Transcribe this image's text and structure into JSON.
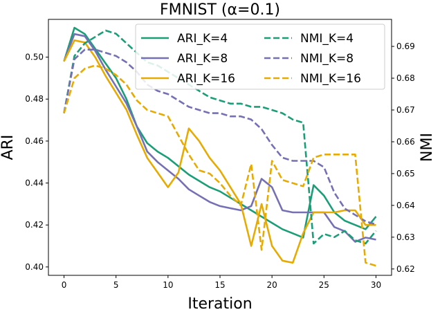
{
  "chart_data": {
    "type": "line",
    "title": "FMNIST (α=0.1)",
    "xlabel": "Iteration",
    "ylabel_left": "ARI",
    "ylabel_right": "NMI",
    "xlim": [
      -1.5,
      31.5
    ],
    "ylim_left": [
      0.396,
      0.518
    ],
    "ylim_right": [
      0.618,
      0.6985
    ],
    "x_ticks": [
      "0",
      "5",
      "10",
      "15",
      "20",
      "25",
      "30"
    ],
    "y_left_ticks": [
      "0.40",
      "0.42",
      "0.44",
      "0.46",
      "0.48",
      "0.50"
    ],
    "y_right_ticks": [
      "0.62",
      "0.63",
      "0.64",
      "0.65",
      "0.66",
      "0.67",
      "0.68",
      "0.69"
    ],
    "legend_position": "top-right",
    "legend_columns": 2,
    "x": [
      0,
      1,
      2,
      3,
      4,
      5,
      6,
      7,
      8,
      9,
      10,
      11,
      12,
      13,
      14,
      15,
      16,
      17,
      18,
      19,
      20,
      21,
      22,
      23,
      24,
      25,
      26,
      27,
      28,
      29,
      30
    ],
    "series": [
      {
        "name": "ARI_K=4",
        "axis": "left",
        "style": "solid",
        "color": "#1b9e77",
        "values": [
          0.498,
          0.514,
          0.511,
          0.504,
          0.497,
          0.49,
          0.48,
          0.467,
          0.459,
          0.455,
          0.452,
          0.448,
          0.444,
          0.441,
          0.438,
          0.436,
          0.433,
          0.43,
          0.427,
          0.424,
          0.421,
          0.418,
          0.416,
          0.414,
          0.439,
          0.434,
          0.426,
          0.422,
          0.42,
          0.418,
          0.424
        ]
      },
      {
        "name": "ARI_K=8",
        "axis": "left",
        "style": "solid",
        "color": "#7570b3",
        "values": [
          0.498,
          0.511,
          0.51,
          0.503,
          0.494,
          0.486,
          0.478,
          0.467,
          0.455,
          0.45,
          0.446,
          0.442,
          0.437,
          0.434,
          0.431,
          0.429,
          0.428,
          0.427,
          0.429,
          0.442,
          0.438,
          0.427,
          0.426,
          0.426,
          0.426,
          0.426,
          0.419,
          0.417,
          0.412,
          0.414,
          0.413
        ]
      },
      {
        "name": "ARI_K=16",
        "axis": "left",
        "style": "solid",
        "color": "#e6ab02",
        "values": [
          0.498,
          0.508,
          0.507,
          0.5,
          0.491,
          0.483,
          0.475,
          0.463,
          0.452,
          0.445,
          0.438,
          0.445,
          0.466,
          0.46,
          0.452,
          0.446,
          0.438,
          0.43,
          0.41,
          0.43,
          0.41,
          0.403,
          0.402,
          0.416,
          0.426,
          0.426,
          0.426,
          0.427,
          0.427,
          0.42,
          0.42
        ]
      },
      {
        "name": "NMI_K=4",
        "axis": "right",
        "style": "dashed",
        "color": "#1b9e77",
        "values": [
          0.669,
          0.687,
          0.691,
          0.693,
          0.695,
          0.694,
          0.691,
          0.688,
          0.685,
          0.684,
          0.682,
          0.68,
          0.678,
          0.676,
          0.674,
          0.673,
          0.672,
          0.672,
          0.671,
          0.671,
          0.67,
          0.669,
          0.667,
          0.666,
          0.628,
          0.631,
          0.63,
          0.632,
          0.629,
          0.628,
          0.632
        ]
      },
      {
        "name": "NMI_K=8",
        "axis": "right",
        "style": "dashed",
        "color": "#7570b3",
        "values": [
          0.669,
          0.686,
          0.689,
          0.689,
          0.688,
          0.687,
          0.685,
          0.682,
          0.678,
          0.676,
          0.675,
          0.673,
          0.671,
          0.67,
          0.669,
          0.669,
          0.668,
          0.668,
          0.667,
          0.664,
          0.659,
          0.655,
          0.654,
          0.654,
          0.654,
          0.652,
          0.644,
          0.639,
          0.637,
          0.635,
          0.634
        ]
      },
      {
        "name": "NMI_K=16",
        "axis": "right",
        "style": "dashed",
        "color": "#e6ab02",
        "values": [
          0.669,
          0.68,
          0.683,
          0.684,
          0.683,
          0.681,
          0.678,
          0.673,
          0.67,
          0.669,
          0.668,
          0.662,
          0.656,
          0.651,
          0.65,
          0.647,
          0.643,
          0.64,
          0.653,
          0.626,
          0.654,
          0.648,
          0.647,
          0.646,
          0.655,
          0.656,
          0.656,
          0.656,
          0.656,
          0.622,
          0.621
        ]
      }
    ]
  }
}
